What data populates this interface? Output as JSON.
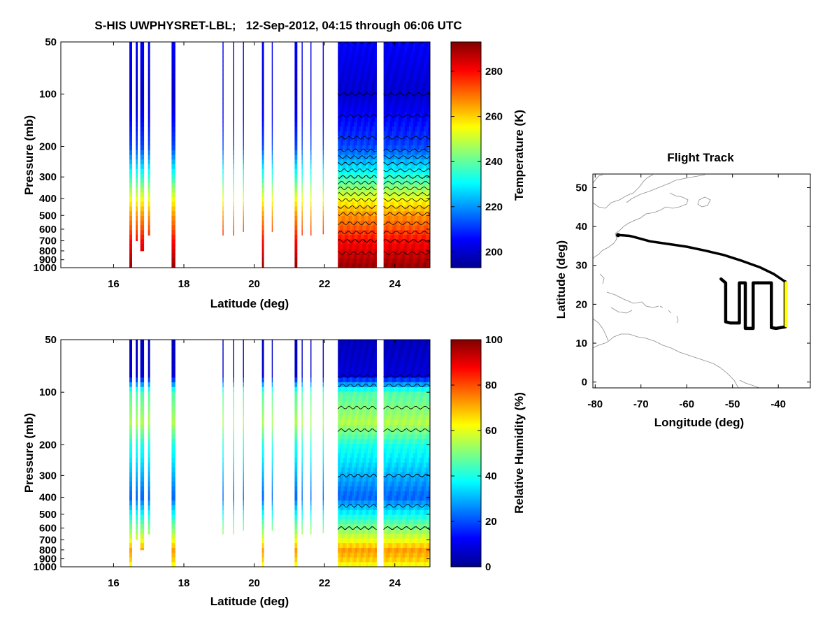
{
  "title": "S-HIS UWPHYSRET-LBL;   12-Sep-2012, 04:15 through 06:06 UTC",
  "colors": {
    "jet": [
      "#00008f",
      "#0000ff",
      "#0080ff",
      "#00ffff",
      "#80ff80",
      "#ffff00",
      "#ff8000",
      "#ff0000",
      "#800000"
    ],
    "coast": "#8c8c8c",
    "track": "#000000",
    "track_highlight": "#ffff00"
  },
  "chart_data": [
    {
      "id": "temperature",
      "type": "heatmap",
      "xlabel": "Latitude (deg)",
      "ylabel": "Pressure (mb)",
      "xlim": [
        14.5,
        25.0
      ],
      "ylim": [
        50,
        1000
      ],
      "yscale": "log",
      "y_reversed": true,
      "xticks": [
        16,
        18,
        20,
        22,
        24
      ],
      "yticks": [
        50,
        100,
        200,
        300,
        400,
        500,
        600,
        700,
        800,
        900,
        1000
      ],
      "colorbar": {
        "label": "Temperature (K)",
        "range": [
          193,
          293
        ],
        "ticks": [
          200,
          220,
          240,
          260,
          280
        ]
      },
      "profile": {
        "pressure": [
          50,
          100,
          200,
          300,
          400,
          500,
          600,
          700,
          800,
          900,
          1000
        ],
        "value": [
          205,
          200,
          212,
          235,
          254,
          266,
          273,
          280,
          284,
          288,
          291
        ]
      },
      "segments": [
        {
          "lat": [
            16.45,
            16.52
          ],
          "pmax": 1000
        },
        {
          "lat": [
            16.63,
            16.68
          ],
          "pmax": 700
        },
        {
          "lat": [
            16.76,
            16.86
          ],
          "pmax": 800
        },
        {
          "lat": [
            16.98,
            17.03
          ],
          "pmax": 650
        },
        {
          "lat": [
            17.65,
            17.75
          ],
          "pmax": 1000
        },
        {
          "lat": [
            19.1,
            19.12
          ],
          "pmax": 650
        },
        {
          "lat": [
            19.4,
            19.42
          ],
          "pmax": 650
        },
        {
          "lat": [
            19.68,
            19.7
          ],
          "pmax": 620
        },
        {
          "lat": [
            20.22,
            20.27
          ],
          "pmax": 1000
        },
        {
          "lat": [
            20.5,
            20.52
          ],
          "pmax": 620
        },
        {
          "lat": [
            21.15,
            21.22
          ],
          "pmax": 1000
        },
        {
          "lat": [
            21.35,
            21.37
          ],
          "pmax": 650
        },
        {
          "lat": [
            21.6,
            21.62
          ],
          "pmax": 650
        },
        {
          "lat": [
            21.95,
            21.97
          ],
          "pmax": 640
        },
        {
          "lat": [
            22.38,
            23.48
          ],
          "pmax": 1000
        },
        {
          "lat": [
            23.68,
            25.0
          ],
          "pmax": 1000
        }
      ],
      "contour_levels": [
        200,
        205,
        210,
        215,
        220,
        225,
        230,
        235,
        240,
        245,
        250,
        255,
        260,
        265,
        270,
        275,
        280,
        285
      ]
    },
    {
      "id": "humidity",
      "type": "heatmap",
      "xlabel": "Latitude (deg)",
      "ylabel": "Pressure (mb)",
      "xlim": [
        14.5,
        25.0
      ],
      "ylim": [
        50,
        1000
      ],
      "yscale": "log",
      "y_reversed": true,
      "xticks": [
        16,
        18,
        20,
        22,
        24
      ],
      "yticks": [
        50,
        100,
        200,
        300,
        400,
        500,
        600,
        700,
        800,
        900,
        1000
      ],
      "colorbar": {
        "label": "Relative Humidity (%)",
        "range": [
          0,
          100
        ],
        "ticks": [
          0,
          20,
          40,
          60,
          80,
          100
        ]
      },
      "profile": {
        "pressure": [
          50,
          80,
          100,
          150,
          200,
          250,
          300,
          400,
          500,
          600,
          700,
          800,
          900,
          1000
        ],
        "value": [
          5,
          8,
          45,
          55,
          40,
          35,
          30,
          22,
          38,
          50,
          60,
          72,
          68,
          60
        ]
      },
      "segments": [
        {
          "lat": [
            16.45,
            16.52
          ],
          "pmax": 1000
        },
        {
          "lat": [
            16.63,
            16.68
          ],
          "pmax": 700
        },
        {
          "lat": [
            16.76,
            16.86
          ],
          "pmax": 800
        },
        {
          "lat": [
            16.98,
            17.03
          ],
          "pmax": 650
        },
        {
          "lat": [
            17.65,
            17.75
          ],
          "pmax": 1000
        },
        {
          "lat": [
            19.1,
            19.12
          ],
          "pmax": 650
        },
        {
          "lat": [
            19.4,
            19.42
          ],
          "pmax": 650
        },
        {
          "lat": [
            19.68,
            19.7
          ],
          "pmax": 620
        },
        {
          "lat": [
            20.22,
            20.27
          ],
          "pmax": 1000
        },
        {
          "lat": [
            20.5,
            20.52
          ],
          "pmax": 620
        },
        {
          "lat": [
            21.15,
            21.22
          ],
          "pmax": 1000
        },
        {
          "lat": [
            21.35,
            21.37
          ],
          "pmax": 650
        },
        {
          "lat": [
            21.6,
            21.62
          ],
          "pmax": 650
        },
        {
          "lat": [
            21.95,
            21.97
          ],
          "pmax": 640
        },
        {
          "lat": [
            22.38,
            23.48
          ],
          "pmax": 1000
        },
        {
          "lat": [
            23.68,
            25.0
          ],
          "pmax": 1000
        }
      ],
      "contour_levels": [
        10,
        30,
        50
      ]
    },
    {
      "id": "flight_track",
      "type": "line",
      "title": "Flight Track",
      "xlabel": "Longitude (deg)",
      "ylabel": "Latitude (deg)",
      "xlim": [
        -80.5,
        -33
      ],
      "ylim": [
        -1.5,
        53.5
      ],
      "xticks": [
        -80,
        -70,
        -60,
        -50,
        -40
      ],
      "yticks": [
        0,
        10,
        20,
        30,
        40,
        50
      ],
      "series": [
        {
          "name": "track",
          "x": [
            -75.0,
            -72.5,
            -71.5,
            -68,
            -64,
            -60,
            -56,
            -52,
            -48,
            -44,
            -41,
            -38.5
          ],
          "y": [
            37.8,
            37.6,
            37.3,
            36.2,
            35.5,
            34.8,
            33.8,
            32.7,
            31.2,
            29.5,
            27.8,
            25.8
          ]
        },
        {
          "name": "pattern",
          "x": [
            -52.5,
            -51.5,
            -51.5,
            -50.5,
            -48.5,
            -48.5,
            -47.2,
            -47.2,
            -45.5,
            -45.5,
            -43.5,
            -41.5,
            -41.5,
            -40.5,
            -38.5,
            -38.5
          ],
          "y": [
            26.5,
            25.5,
            15.5,
            15.2,
            15.2,
            25.5,
            25.5,
            13.8,
            13.8,
            25.5,
            25.5,
            25.5,
            14.0,
            13.8,
            14.2,
            25.8
          ]
        },
        {
          "name": "current",
          "x": [
            -38.3,
            -38.3
          ],
          "y": [
            25.5,
            14.5
          ]
        }
      ]
    }
  ]
}
